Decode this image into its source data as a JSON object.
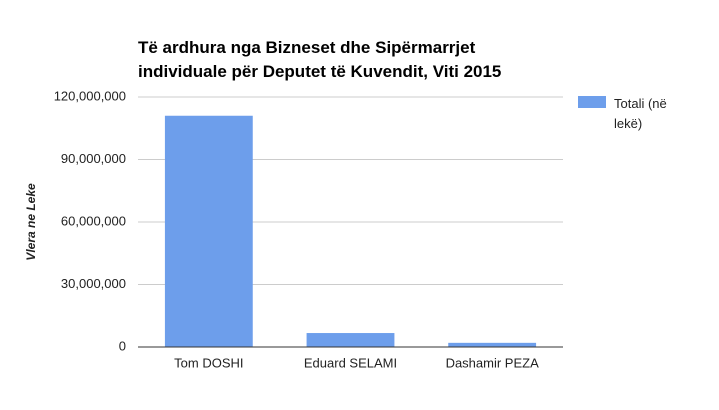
{
  "chart_data": {
    "type": "bar",
    "title": "Të ardhura nga Bizneset dhe Sipërmarrjet individuale për Deputet të Kuvendit, Viti 2015",
    "y_label": "Vlera ne Leke",
    "categories": [
      "Tom DOSHI",
      "Eduard SELAMI",
      "Dashamir PEZA"
    ],
    "series": [
      {
        "name": "Totali (në lekë)",
        "color": "#6d9eeb",
        "values": [
          111000000,
          6700000,
          2000000
        ]
      }
    ],
    "ylim": [
      0,
      120000000
    ],
    "yticks": [
      0,
      {
        "value": 30000000,
        "label": "30,000,000"
      },
      {
        "value": 60000000,
        "label": "60,000,000"
      },
      {
        "value": 90000000,
        "label": "90,000,000"
      },
      {
        "value": 120000000,
        "label": "120,000,000"
      }
    ],
    "grid": true,
    "legend": "right"
  }
}
